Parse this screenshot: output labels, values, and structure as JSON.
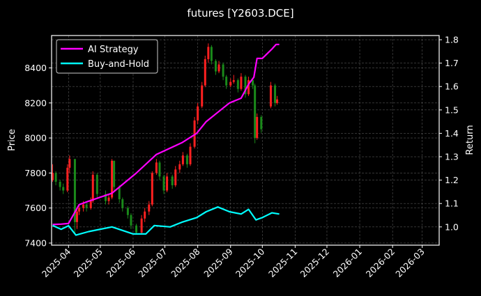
{
  "chart_data": {
    "type": "line",
    "title": "futures [Y2603.DCE]",
    "ylabel": "Price",
    "ylabel_right": "Return",
    "xlim": [
      "2025-03-16",
      "2026-03-17"
    ],
    "ylim": [
      7388,
      8585
    ],
    "ylim_right": [
      0.922,
      1.818
    ],
    "x_ticks": [
      "2025-04",
      "2025-05",
      "2025-06",
      "2025-07",
      "2025-08",
      "2025-09",
      "2025-10",
      "2025-11",
      "2025-12",
      "2026-01",
      "2026-02",
      "2026-03"
    ],
    "y_ticks": [
      7400,
      7600,
      7800,
      8000,
      8200,
      8400
    ],
    "y_ticks_right": [
      "1.0",
      "1.1",
      "1.2",
      "1.3",
      "1.4",
      "1.5",
      "1.6",
      "1.7",
      "1.8"
    ],
    "grid": true,
    "legend_position": "top-left",
    "colors": {
      "background": "#000000",
      "up": "#ff2020",
      "down": "#1a8a1a",
      "ai": "#ff00ff",
      "bh": "#00ffff"
    },
    "candles_columns": [
      "date",
      "open",
      "high",
      "low",
      "close"
    ],
    "candles": [
      [
        "2025-03-17",
        7760,
        7850,
        7750,
        7800
      ],
      [
        "2025-03-20",
        7800,
        7810,
        7730,
        7750
      ],
      [
        "2025-03-24",
        7750,
        7760,
        7700,
        7720
      ],
      [
        "2025-03-27",
        7720,
        7740,
        7680,
        7700
      ],
      [
        "2025-03-31",
        7700,
        7850,
        7690,
        7830
      ],
      [
        "2025-04-02",
        7830,
        7900,
        7800,
        7880
      ],
      [
        "2025-04-07",
        7880,
        7880,
        7460,
        7520
      ],
      [
        "2025-04-09",
        7520,
        7600,
        7480,
        7580
      ],
      [
        "2025-04-11",
        7580,
        7620,
        7560,
        7600
      ],
      [
        "2025-04-15",
        7600,
        7640,
        7580,
        7620
      ],
      [
        "2025-04-18",
        7620,
        7630,
        7580,
        7600
      ],
      [
        "2025-04-22",
        7600,
        7660,
        7590,
        7640
      ],
      [
        "2025-04-24",
        7640,
        7810,
        7630,
        7790
      ],
      [
        "2025-04-28",
        7790,
        7800,
        7660,
        7680
      ],
      [
        "2025-05-06",
        7680,
        7700,
        7620,
        7640
      ],
      [
        "2025-05-09",
        7640,
        7680,
        7620,
        7660
      ],
      [
        "2025-05-12",
        7660,
        7880,
        7650,
        7870
      ],
      [
        "2025-05-14",
        7870,
        7870,
        7700,
        7720
      ],
      [
        "2025-05-19",
        7720,
        7730,
        7630,
        7650
      ],
      [
        "2025-05-22",
        7650,
        7660,
        7580,
        7600
      ],
      [
        "2025-05-27",
        7600,
        7610,
        7540,
        7560
      ],
      [
        "2025-05-30",
        7560,
        7570,
        7480,
        7500
      ],
      [
        "2025-06-04",
        7500,
        7510,
        7450,
        7460
      ],
      [
        "2025-06-09",
        7460,
        7560,
        7450,
        7540
      ],
      [
        "2025-06-12",
        7540,
        7600,
        7520,
        7580
      ],
      [
        "2025-06-16",
        7580,
        7640,
        7560,
        7620
      ],
      [
        "2025-06-19",
        7620,
        7810,
        7610,
        7800
      ],
      [
        "2025-06-23",
        7800,
        7880,
        7790,
        7860
      ],
      [
        "2025-06-26",
        7860,
        7870,
        7760,
        7780
      ],
      [
        "2025-06-30",
        7780,
        7790,
        7680,
        7700
      ],
      [
        "2025-07-03",
        7700,
        7800,
        7690,
        7780
      ],
      [
        "2025-07-08",
        7780,
        7790,
        7710,
        7730
      ],
      [
        "2025-07-11",
        7730,
        7840,
        7720,
        7820
      ],
      [
        "2025-07-15",
        7820,
        7870,
        7800,
        7850
      ],
      [
        "2025-07-18",
        7850,
        7920,
        7840,
        7900
      ],
      [
        "2025-07-22",
        7900,
        7910,
        7830,
        7850
      ],
      [
        "2025-07-25",
        7850,
        7970,
        7840,
        7950
      ],
      [
        "2025-07-29",
        7950,
        8120,
        7940,
        8100
      ],
      [
        "2025-08-01",
        8100,
        8200,
        8080,
        8180
      ],
      [
        "2025-08-05",
        8180,
        8320,
        8170,
        8300
      ],
      [
        "2025-08-08",
        8300,
        8470,
        8290,
        8450
      ],
      [
        "2025-08-11",
        8450,
        8540,
        8430,
        8520
      ],
      [
        "2025-08-14",
        8520,
        8530,
        8420,
        8440
      ],
      [
        "2025-08-18",
        8440,
        8450,
        8360,
        8380
      ],
      [
        "2025-08-21",
        8380,
        8440,
        8370,
        8420
      ],
      [
        "2025-08-25",
        8420,
        8430,
        8330,
        8350
      ],
      [
        "2025-08-28",
        8350,
        8360,
        8280,
        8300
      ],
      [
        "2025-09-01",
        8300,
        8340,
        8290,
        8320
      ],
      [
        "2025-09-04",
        8320,
        8360,
        8310,
        8330
      ],
      [
        "2025-09-08",
        8330,
        8340,
        8260,
        8280
      ],
      [
        "2025-09-11",
        8280,
        8370,
        8270,
        8350
      ],
      [
        "2025-09-15",
        8350,
        8360,
        8230,
        8250
      ],
      [
        "2025-09-18",
        8250,
        8350,
        8240,
        8330
      ],
      [
        "2025-09-22",
        8330,
        8340,
        8280,
        8300
      ],
      [
        "2025-09-24",
        8300,
        8310,
        7970,
        8000
      ],
      [
        "2025-09-26",
        8000,
        8140,
        7990,
        8120
      ],
      [
        "2025-09-30",
        8120,
        8130,
        8030,
        8050
      ],
      [
        "2025-10-09",
        8180,
        8320,
        8170,
        8300
      ],
      [
        "2025-10-13",
        8300,
        8310,
        8180,
        8200
      ],
      [
        "2025-10-15",
        8200,
        8240,
        8190,
        8220
      ]
    ],
    "series": [
      {
        "name": "AI Strategy",
        "x": [
          "2025-03-17",
          "2025-03-25",
          "2025-04-01",
          "2025-04-11",
          "2025-04-20",
          "2025-05-12",
          "2025-06-04",
          "2025-06-23",
          "2025-07-17",
          "2025-07-31",
          "2025-08-09",
          "2025-08-20",
          "2025-08-31",
          "2025-09-11",
          "2025-09-18",
          "2025-09-23",
          "2025-09-26",
          "2025-10-01",
          "2025-10-10",
          "2025-10-14",
          "2025-10-17"
        ],
        "values": [
          1.01,
          1.012,
          1.015,
          1.095,
          1.11,
          1.144,
          1.23,
          1.31,
          1.36,
          1.4,
          1.45,
          1.49,
          1.53,
          1.55,
          1.61,
          1.64,
          1.72,
          1.72,
          1.76,
          1.78,
          1.78
        ]
      },
      {
        "name": "Buy-and-Hold",
        "x": [
          "2025-03-17",
          "2025-03-25",
          "2025-04-01",
          "2025-04-08",
          "2025-04-20",
          "2025-05-12",
          "2025-06-01",
          "2025-06-13",
          "2025-06-21",
          "2025-07-06",
          "2025-07-17",
          "2025-07-31",
          "2025-08-09",
          "2025-08-20",
          "2025-08-31",
          "2025-09-11",
          "2025-09-18",
          "2025-09-25",
          "2025-10-01",
          "2025-10-10",
          "2025-10-17"
        ],
        "values": [
          1.006,
          0.99,
          1.005,
          0.965,
          0.98,
          1.0,
          0.97,
          0.97,
          1.006,
          1.0,
          1.02,
          1.04,
          1.065,
          1.085,
          1.065,
          1.055,
          1.075,
          1.03,
          1.04,
          1.06,
          1.055
        ]
      }
    ]
  }
}
